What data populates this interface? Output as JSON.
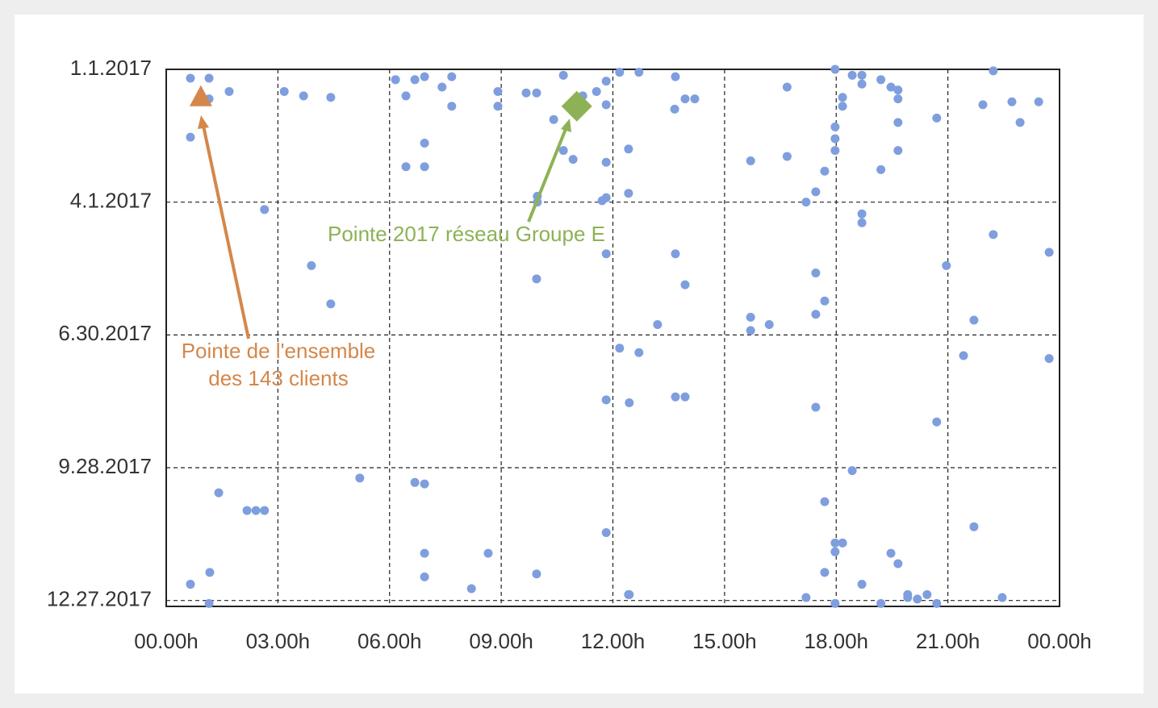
{
  "chart_data": {
    "type": "scatter",
    "xlim": [
      0,
      24
    ],
    "xticks": [
      {
        "value": 0,
        "label": "00.00h"
      },
      {
        "value": 3,
        "label": "03.00h"
      },
      {
        "value": 6,
        "label": "06.00h"
      },
      {
        "value": 9,
        "label": "09.00h"
      },
      {
        "value": 12,
        "label": "12.00h"
      },
      {
        "value": 15,
        "label": "15.00h"
      },
      {
        "value": 18,
        "label": "18.00h"
      },
      {
        "value": 21,
        "label": "21.00h"
      },
      {
        "value": 24,
        "label": "00.00h"
      }
    ],
    "ylim": [
      364,
      0
    ],
    "yticks": [
      {
        "value": 0,
        "label": "1.1.2017"
      },
      {
        "value": 90,
        "label": "4.1.2017"
      },
      {
        "value": 180,
        "label": "6.30.2017"
      },
      {
        "value": 270,
        "label": "9.28.2017"
      },
      {
        "value": 360,
        "label": "12.27.2017"
      }
    ],
    "grid": true,
    "series": [
      {
        "color": "#7f9ede",
        "x": [
          0.65,
          1.15,
          1.69,
          1.15,
          0.65,
          3.17,
          3.69,
          4.42,
          2.64,
          3.9,
          4.42,
          6.16,
          6.68,
          6.94,
          7.67,
          7.41,
          6.44,
          7.67,
          8.91,
          8.91,
          9.67,
          9.95,
          6.94,
          6.44,
          6.94,
          10.67,
          11.19,
          10.41,
          10.67,
          10.93,
          9.97,
          9.97,
          9.95,
          11.56,
          11.82,
          12.18,
          12.7,
          11.82,
          11.82,
          12.42,
          11.71,
          11.82,
          12.42,
          11.82,
          13.68,
          13.66,
          13.94,
          14.2,
          13.68,
          13.94,
          13.2,
          12.18,
          12.7,
          11.82,
          12.44,
          13.68,
          13.94,
          11.82,
          12.42,
          15.7,
          16.68,
          16.68,
          15.7,
          15.7,
          16.2,
          17.97,
          18.43,
          18.69,
          18.69,
          18.17,
          18.17,
          17.97,
          17.97,
          17.97,
          17.69,
          17.45,
          17.19,
          18.69,
          18.69,
          19.2,
          19.47,
          19.66,
          19.66,
          19.66,
          19.66,
          19.2,
          20.7,
          17.45,
          17.69,
          17.45,
          17.45,
          18.43,
          17.69,
          17.97,
          18.17,
          17.97,
          17.69,
          17.19,
          17.97,
          18.69,
          19.2,
          19.47,
          19.66,
          19.92,
          20.18,
          20.44,
          20.7,
          20.7,
          20.96,
          22.22,
          21.94,
          22.72,
          23.44,
          22.94,
          22.22,
          23.72,
          21.7,
          21.42,
          23.72,
          21.7,
          22.46,
          1.41,
          2.17,
          2.41,
          2.64,
          1.17,
          0.65,
          1.15,
          5.2,
          6.68,
          6.94,
          6.94,
          6.94,
          8.65,
          8.2,
          9.95,
          12.44,
          19.92
        ],
        "y": [
          6,
          6,
          15,
          20,
          46,
          15,
          18,
          19,
          95,
          133,
          159,
          7,
          7,
          5,
          5,
          12,
          18,
          25,
          15,
          25,
          16,
          16,
          50,
          66,
          66,
          4,
          18,
          34,
          55,
          61,
          86,
          90,
          142,
          15,
          8,
          2,
          2,
          24,
          63,
          54,
          89,
          87,
          84,
          125,
          5,
          27,
          20,
          20,
          125,
          146,
          173,
          189,
          192,
          224,
          226,
          222,
          222,
          314,
          356,
          62,
          12,
          59,
          168,
          177,
          173,
          0,
          4,
          4,
          10,
          19,
          25,
          39,
          47,
          55,
          69,
          83,
          90,
          98,
          104,
          7,
          12,
          14,
          20,
          36,
          55,
          68,
          33,
          138,
          157,
          166,
          229,
          272,
          293,
          321,
          321,
          327,
          341,
          358,
          362,
          349,
          362,
          328,
          335,
          356,
          359,
          356,
          362,
          239,
          133,
          1,
          24,
          22,
          22,
          36,
          112,
          124,
          170,
          194,
          196,
          310,
          358,
          287,
          299,
          299,
          299,
          341,
          349,
          362,
          277,
          280,
          281,
          328,
          344,
          328,
          352,
          342,
          356,
          358
        ]
      }
    ],
    "highlights": [
      {
        "text": [
          "Pointe de l'ensemble",
          "des 143 clients"
        ],
        "x": 0.93,
        "y": 19,
        "color": "#d4874a",
        "marker": "triangle"
      },
      {
        "text": [
          "Pointe 2017 réseau Groupe E"
        ],
        "x": 11.03,
        "y": 25,
        "color": "#8db255",
        "marker": "diamond"
      }
    ]
  }
}
